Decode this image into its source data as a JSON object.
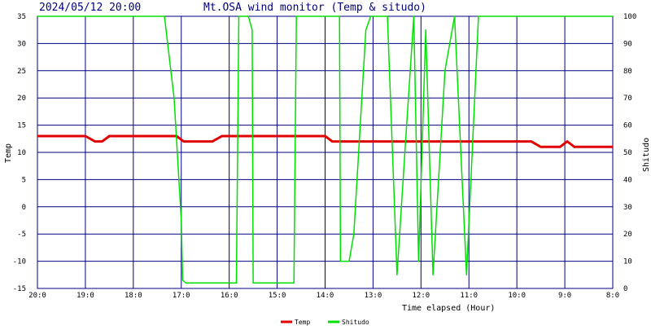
{
  "header": {
    "timestamp": "2024/05/12 20:00",
    "title": "Mt.OSA wind monitor (Temp & situdo)"
  },
  "chart_data": {
    "type": "line",
    "x_label": "Time elapsed (Hour)",
    "y_left_label": "Temp",
    "y_right_label": "Shitudo",
    "x_range": [
      0,
      12
    ],
    "x_ticks": [
      "20:0",
      "19:0",
      "18:0",
      "17:0",
      "16:0",
      "15:0",
      "14:0",
      "13:0",
      "12:0",
      "11:0",
      "10:0",
      "9:0",
      "8:0"
    ],
    "y_left_range": [
      -15,
      35
    ],
    "y_left_ticks": [
      -15,
      -10,
      -5,
      0,
      5,
      10,
      15,
      20,
      25,
      30,
      35
    ],
    "y_right_range": [
      0,
      100
    ],
    "y_right_ticks": [
      0,
      10,
      20,
      30,
      40,
      50,
      60,
      70,
      80,
      90,
      100
    ],
    "grid": true,
    "legend_placement": "bottom-center",
    "series": [
      {
        "name": "Temp",
        "axis": "left",
        "color": "#e00000",
        "points": [
          [
            0,
            13
          ],
          [
            1.0,
            13
          ],
          [
            1.2,
            12
          ],
          [
            1.35,
            12
          ],
          [
            1.5,
            13
          ],
          [
            2.9,
            13
          ],
          [
            3.05,
            12
          ],
          [
            3.65,
            12
          ],
          [
            3.85,
            13
          ],
          [
            6.0,
            13
          ],
          [
            6.15,
            12
          ],
          [
            10.3,
            12
          ],
          [
            10.5,
            11
          ],
          [
            10.9,
            11
          ],
          [
            11.05,
            12
          ],
          [
            11.2,
            11
          ],
          [
            12,
            11
          ]
        ]
      },
      {
        "name": "Shitudo",
        "axis": "right",
        "color": "#00e000",
        "points": [
          [
            0,
            100
          ],
          [
            2.65,
            100
          ],
          [
            2.85,
            70
          ],
          [
            3.0,
            25
          ],
          [
            3.03,
            3
          ],
          [
            3.1,
            2
          ],
          [
            4.15,
            2
          ],
          [
            4.2,
            100
          ],
          [
            4.4,
            100
          ],
          [
            4.48,
            95
          ],
          [
            4.5,
            2
          ],
          [
            5.35,
            2
          ],
          [
            5.4,
            100
          ],
          [
            6.3,
            100
          ],
          [
            6.32,
            10
          ],
          [
            6.5,
            10
          ],
          [
            6.6,
            20
          ],
          [
            6.85,
            95
          ],
          [
            6.95,
            100
          ],
          [
            7.3,
            100
          ],
          [
            7.5,
            5
          ],
          [
            7.7,
            60
          ],
          [
            7.85,
            100
          ],
          [
            7.95,
            10
          ],
          [
            8.1,
            95
          ],
          [
            8.25,
            5
          ],
          [
            8.5,
            80
          ],
          [
            8.7,
            100
          ],
          [
            8.95,
            5
          ],
          [
            9.2,
            100
          ],
          [
            12,
            100
          ]
        ]
      }
    ]
  }
}
